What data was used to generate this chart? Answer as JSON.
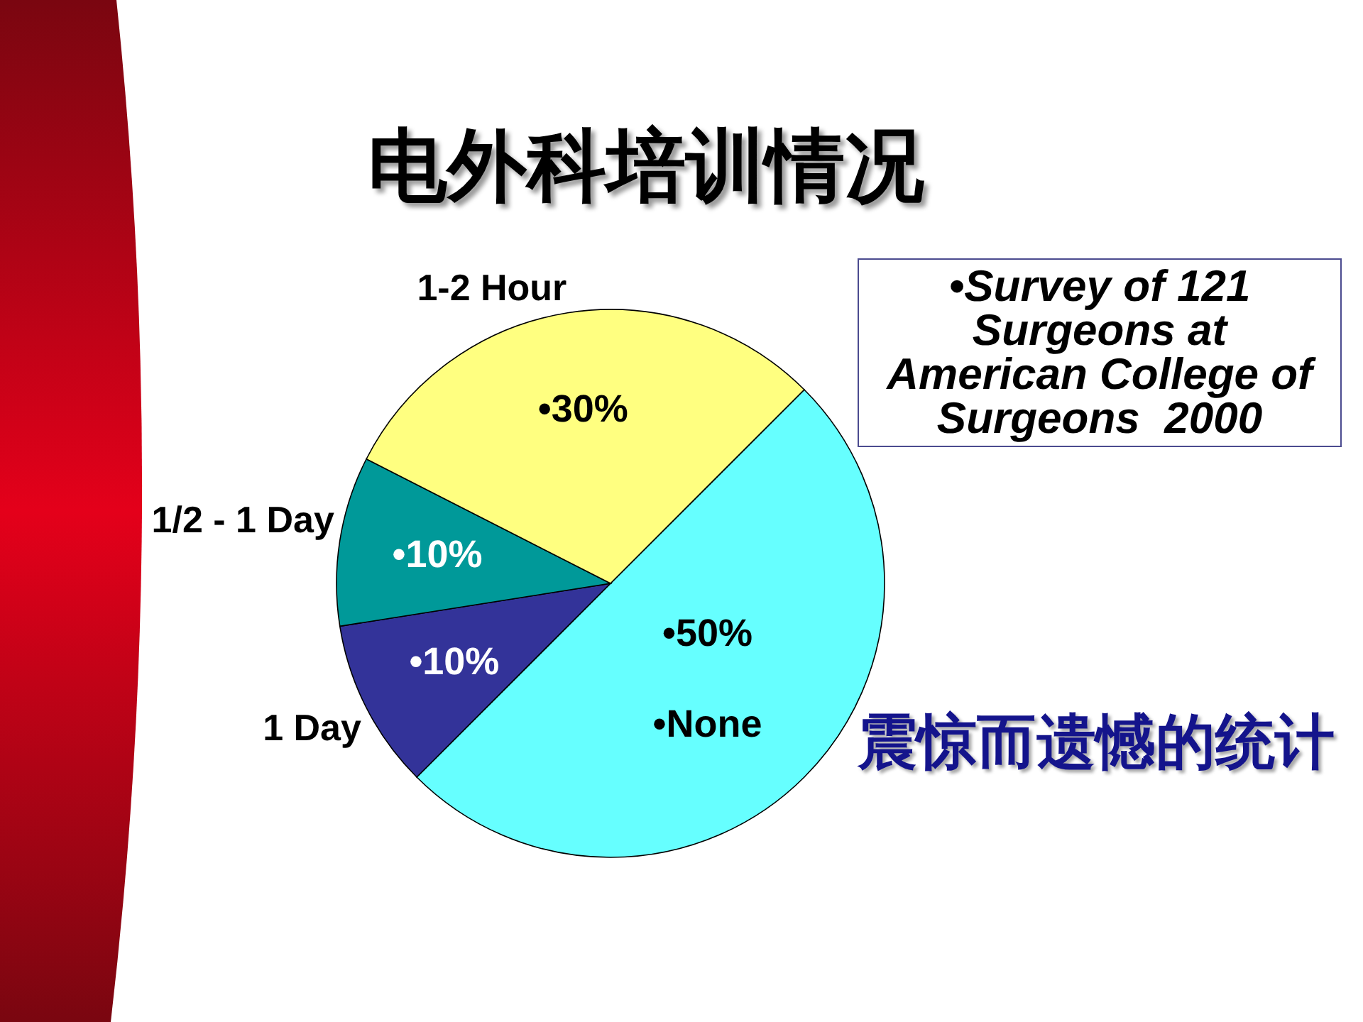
{
  "chart_data": {
    "type": "pie",
    "title": "电外科培训情况",
    "categories": [
      "•None",
      "1 Day",
      "1/2 - 1 Day",
      "1-2 Hour"
    ],
    "values": [
      50,
      10,
      10,
      30
    ],
    "colors": [
      "#66ffff",
      "#333399",
      "#009999",
      "#ffff80"
    ],
    "value_labels": [
      "•50%",
      "•10%",
      "•10%",
      "•30%"
    ],
    "annotations": [
      "•Survey of 121 Surgeons at American College of Surgeons  2000",
      "震惊而遗憾的统计"
    ]
  }
}
